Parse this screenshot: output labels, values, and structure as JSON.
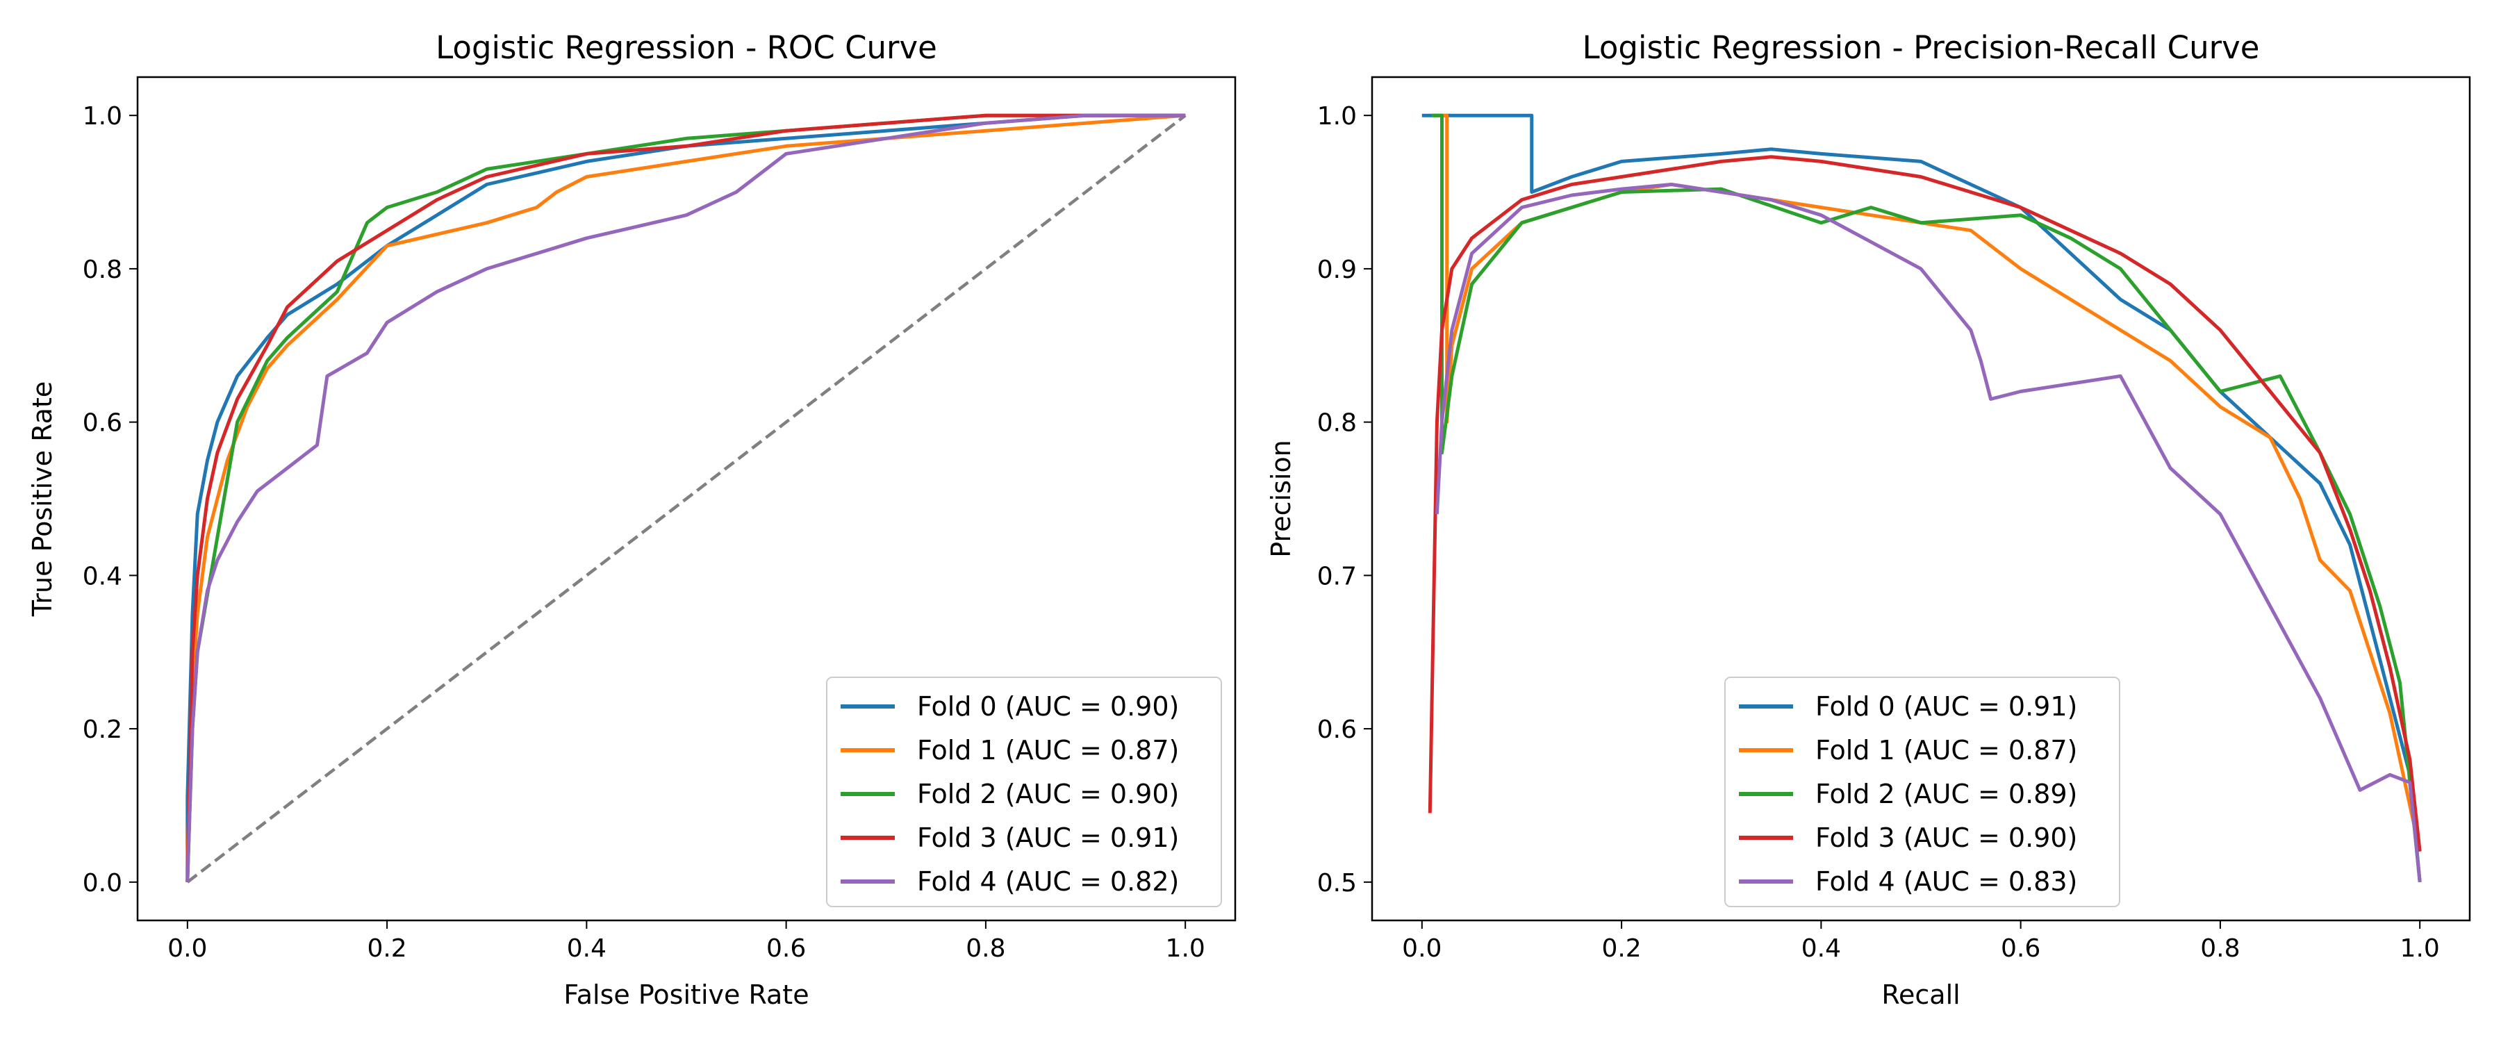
{
  "colors": {
    "fold0": "#1f77b4",
    "fold1": "#ff7f0e",
    "fold2": "#2ca02c",
    "fold3": "#d62728",
    "fold4": "#9467bd",
    "chance": "#808080"
  },
  "chart_data": [
    {
      "type": "line",
      "title": "Logistic Regression - ROC Curve",
      "xlabel": "False Positive Rate",
      "ylabel": "True Positive Rate",
      "xlim": [
        -0.05,
        1.05
      ],
      "ylim": [
        -0.05,
        1.05
      ],
      "xticks": [
        0.0,
        0.2,
        0.4,
        0.6,
        0.8,
        1.0
      ],
      "yticks": [
        0.0,
        0.2,
        0.4,
        0.6,
        0.8,
        1.0
      ],
      "tick_labels_x": [
        "0.0",
        "0.2",
        "0.4",
        "0.6",
        "0.8",
        "1.0"
      ],
      "tick_labels_y": [
        "0.0",
        "0.2",
        "0.4",
        "0.6",
        "0.8",
        "1.0"
      ],
      "grid": false,
      "legend_position": "lower-right",
      "reference_line": {
        "x": [
          0,
          1
        ],
        "y": [
          0,
          1
        ],
        "style": "dashed"
      },
      "series": [
        {
          "name": "Fold 0 (AUC = 0.90)",
          "color_key": "fold0",
          "x": [
            0,
            0,
            0.005,
            0.01,
            0.02,
            0.03,
            0.05,
            0.08,
            0.1,
            0.15,
            0.2,
            0.25,
            0.3,
            0.4,
            0.5,
            0.6,
            0.7,
            0.8,
            0.9,
            1.0
          ],
          "y": [
            0,
            0.11,
            0.35,
            0.48,
            0.55,
            0.6,
            0.66,
            0.71,
            0.74,
            0.78,
            0.83,
            0.87,
            0.91,
            0.94,
            0.96,
            0.97,
            0.98,
            0.99,
            1.0,
            1.0
          ]
        },
        {
          "name": "Fold 1 (AUC = 0.87)",
          "color_key": "fold1",
          "x": [
            0,
            0,
            0.005,
            0.01,
            0.02,
            0.04,
            0.06,
            0.08,
            0.1,
            0.15,
            0.2,
            0.3,
            0.35,
            0.37,
            0.4,
            0.5,
            0.6,
            0.7,
            0.8,
            0.9,
            1.0
          ],
          "y": [
            0,
            0.03,
            0.25,
            0.35,
            0.45,
            0.55,
            0.62,
            0.67,
            0.7,
            0.76,
            0.83,
            0.86,
            0.88,
            0.9,
            0.92,
            0.94,
            0.96,
            0.97,
            0.98,
            0.99,
            1.0
          ]
        },
        {
          "name": "Fold 2 (AUC = 0.90)",
          "color_key": "fold2",
          "x": [
            0,
            0.005,
            0.01,
            0.03,
            0.05,
            0.08,
            0.1,
            0.15,
            0.18,
            0.2,
            0.25,
            0.3,
            0.4,
            0.5,
            0.6,
            0.7,
            0.8,
            1.0
          ],
          "y": [
            0,
            0.2,
            0.3,
            0.45,
            0.6,
            0.68,
            0.71,
            0.77,
            0.86,
            0.88,
            0.9,
            0.93,
            0.95,
            0.97,
            0.98,
            0.99,
            1.0,
            1.0
          ]
        },
        {
          "name": "Fold 3 (AUC = 0.91)",
          "color_key": "fold3",
          "x": [
            0,
            0.005,
            0.01,
            0.02,
            0.03,
            0.05,
            0.08,
            0.1,
            0.15,
            0.2,
            0.25,
            0.3,
            0.4,
            0.5,
            0.6,
            0.7,
            0.8,
            0.9,
            1.0
          ],
          "y": [
            0,
            0.3,
            0.4,
            0.5,
            0.56,
            0.63,
            0.7,
            0.75,
            0.81,
            0.85,
            0.89,
            0.92,
            0.95,
            0.96,
            0.98,
            0.99,
            1.0,
            1.0,
            1.0
          ]
        },
        {
          "name": "Fold 4 (AUC = 0.82)",
          "color_key": "fold4",
          "x": [
            0,
            0.005,
            0.01,
            0.02,
            0.03,
            0.05,
            0.07,
            0.1,
            0.13,
            0.14,
            0.18,
            0.2,
            0.25,
            0.3,
            0.4,
            0.5,
            0.55,
            0.6,
            0.7,
            0.8,
            0.9,
            1.0
          ],
          "y": [
            0,
            0.2,
            0.3,
            0.38,
            0.42,
            0.47,
            0.51,
            0.54,
            0.57,
            0.66,
            0.69,
            0.73,
            0.77,
            0.8,
            0.84,
            0.87,
            0.9,
            0.95,
            0.97,
            0.99,
            1.0,
            1.0
          ]
        }
      ]
    },
    {
      "type": "line",
      "title": "Logistic Regression - Precision-Recall Curve",
      "xlabel": "Recall",
      "ylabel": "Precision",
      "xlim": [
        -0.05,
        1.05
      ],
      "ylim": [
        0.475,
        1.025
      ],
      "xticks": [
        0.0,
        0.2,
        0.4,
        0.6,
        0.8,
        1.0
      ],
      "yticks": [
        0.5,
        0.6,
        0.7,
        0.8,
        0.9,
        1.0
      ],
      "tick_labels_x": [
        "0.0",
        "0.2",
        "0.4",
        "0.6",
        "0.8",
        "1.0"
      ],
      "tick_labels_y": [
        "0.5",
        "0.6",
        "0.7",
        "0.8",
        "0.9",
        "1.0"
      ],
      "grid": false,
      "legend_position": "lower-center",
      "series": [
        {
          "name": "Fold 0 (AUC = 0.91)",
          "color_key": "fold0",
          "x": [
            0,
            0.11,
            0.11,
            0.15,
            0.2,
            0.3,
            0.35,
            0.4,
            0.5,
            0.6,
            0.65,
            0.7,
            0.75,
            0.8,
            0.85,
            0.9,
            0.93,
            0.95,
            0.97,
            0.99,
            1.0
          ],
          "y": [
            1.0,
            1.0,
            0.95,
            0.96,
            0.97,
            0.975,
            0.978,
            0.975,
            0.97,
            0.94,
            0.91,
            0.88,
            0.86,
            0.82,
            0.79,
            0.76,
            0.72,
            0.67,
            0.62,
            0.57,
            0.5
          ]
        },
        {
          "name": "Fold 1 (AUC = 0.87)",
          "color_key": "fold1",
          "x": [
            0.01,
            0.025,
            0.025,
            0.03,
            0.05,
            0.1,
            0.15,
            0.2,
            0.25,
            0.3,
            0.4,
            0.5,
            0.55,
            0.6,
            0.65,
            0.7,
            0.75,
            0.8,
            0.85,
            0.88,
            0.9,
            0.93,
            0.95,
            0.97,
            0.99,
            1.0
          ],
          "y": [
            1.0,
            1.0,
            0.8,
            0.85,
            0.9,
            0.93,
            0.94,
            0.95,
            0.955,
            0.95,
            0.94,
            0.93,
            0.925,
            0.9,
            0.88,
            0.86,
            0.84,
            0.81,
            0.79,
            0.75,
            0.71,
            0.69,
            0.65,
            0.61,
            0.55,
            0.52
          ]
        },
        {
          "name": "Fold 2 (AUC = 0.89)",
          "color_key": "fold2",
          "x": [
            0.01,
            0.02,
            0.02,
            0.03,
            0.05,
            0.1,
            0.15,
            0.2,
            0.3,
            0.4,
            0.45,
            0.5,
            0.6,
            0.65,
            0.7,
            0.8,
            0.86,
            0.9,
            0.93,
            0.96,
            0.98,
            1.0
          ],
          "y": [
            1.0,
            1.0,
            0.78,
            0.83,
            0.89,
            0.93,
            0.94,
            0.95,
            0.952,
            0.93,
            0.94,
            0.93,
            0.935,
            0.92,
            0.9,
            0.82,
            0.83,
            0.78,
            0.74,
            0.68,
            0.63,
            0.5
          ]
        },
        {
          "name": "Fold 3 (AUC = 0.90)",
          "color_key": "fold3",
          "x": [
            0.008,
            0.01,
            0.015,
            0.02,
            0.03,
            0.05,
            0.1,
            0.15,
            0.2,
            0.3,
            0.35,
            0.4,
            0.5,
            0.6,
            0.65,
            0.7,
            0.75,
            0.8,
            0.85,
            0.9,
            0.93,
            0.95,
            0.97,
            0.99,
            1.0
          ],
          "y": [
            0.545,
            0.62,
            0.8,
            0.86,
            0.9,
            0.92,
            0.945,
            0.955,
            0.96,
            0.97,
            0.973,
            0.97,
            0.96,
            0.94,
            0.925,
            0.91,
            0.89,
            0.86,
            0.82,
            0.78,
            0.73,
            0.69,
            0.64,
            0.58,
            0.52
          ]
        },
        {
          "name": "Fold 4 (AUC = 0.83)",
          "color_key": "fold4",
          "x": [
            0.015,
            0.02,
            0.03,
            0.05,
            0.1,
            0.15,
            0.2,
            0.25,
            0.3,
            0.35,
            0.4,
            0.5,
            0.55,
            0.56,
            0.57,
            0.6,
            0.7,
            0.75,
            0.8,
            0.85,
            0.9,
            0.94,
            0.97,
            0.99,
            1.0
          ],
          "y": [
            0.74,
            0.8,
            0.86,
            0.91,
            0.94,
            0.948,
            0.952,
            0.955,
            0.95,
            0.945,
            0.935,
            0.9,
            0.86,
            0.84,
            0.815,
            0.82,
            0.83,
            0.77,
            0.74,
            0.68,
            0.62,
            0.56,
            0.57,
            0.565,
            0.5
          ]
        }
      ]
    }
  ]
}
